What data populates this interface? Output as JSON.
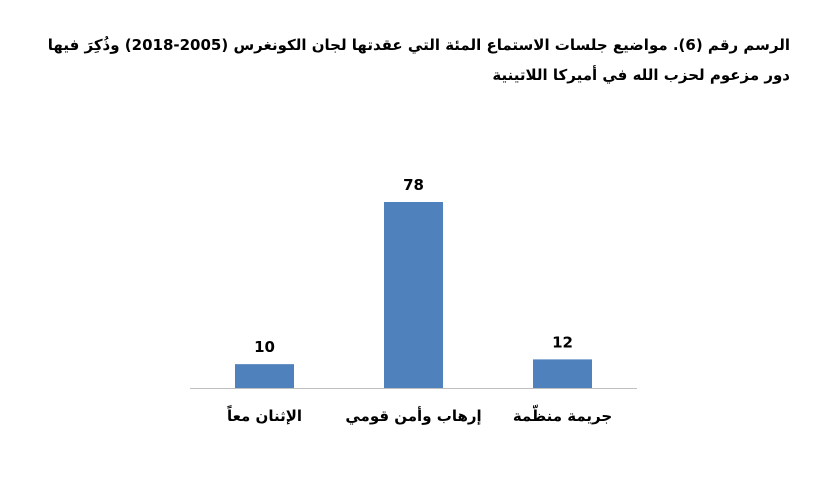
{
  "chart_data": {
    "type": "bar",
    "title": "الرسم رقم (6). مواضيع جلسات الاستماع المئة التي عقدتها لجان الكونغرس (2005-2018) وذُكِرَ فيها دور مزعوم لحزب الله في أميركا اللاتينية",
    "categories": [
      "الإثنان معاً",
      "إرهاب وأمن قومي",
      "جريمة منظّمة"
    ],
    "values": [
      10,
      78,
      12
    ],
    "xlabel": "",
    "ylabel": "",
    "ylim": [
      0,
      78
    ],
    "grid": false,
    "legend": "none",
    "bar_color": "#4f81bd",
    "axis_color": "#bfbfbf"
  }
}
